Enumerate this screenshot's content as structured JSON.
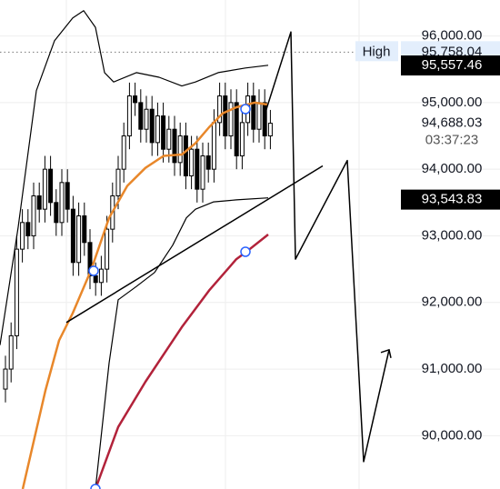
{
  "chart_data": {
    "type": "candlestick",
    "xlim": [
      0,
      110
    ],
    "ylim": [
      89200,
      96540
    ],
    "yticks": [
      {
        "value": 90000,
        "label": "90,000.00"
      },
      {
        "value": 91000,
        "label": "91,000.00"
      },
      {
        "value": 92000,
        "label": "92,000.00"
      },
      {
        "value": 93000,
        "label": "93,000.00"
      },
      {
        "value": 94000,
        "label": "94,000.00"
      },
      {
        "value": 95000,
        "label": "95,000.00"
      },
      {
        "value": 96000,
        "label": "96,000.00"
      }
    ],
    "grid": true,
    "up_color": "#ffffff",
    "down_color": "#000000",
    "candles": {
      "x": [
        1.2,
        2.44,
        3.68,
        4.92,
        6.16,
        7.4,
        8.64,
        9.88,
        11.12,
        12.36,
        13.6,
        14.84,
        16.08,
        17.32,
        18.56,
        19.8,
        21.04,
        22.28,
        23.52,
        24.76,
        26,
        27.24,
        28.48,
        29.72,
        30.96,
        32.2,
        33.44,
        34.68,
        35.92,
        37.16,
        38.4,
        39.64,
        40.88,
        42.12,
        43.36,
        44.6,
        45.84,
        47.08,
        48.32,
        49.56,
        50.8,
        52.04,
        53.28,
        54.52,
        55.76,
        57,
        58.24,
        59.48
      ],
      "open": [
        90700,
        91000,
        91500,
        92800,
        93200,
        93000,
        93600,
        93400,
        94000,
        93500,
        93200,
        93800,
        93400,
        92600,
        93300,
        92900,
        92400,
        92300,
        92500,
        93100,
        93600,
        94000,
        94500,
        95100,
        95000,
        94600,
        94900,
        94400,
        94800,
        94300,
        94600,
        94100,
        94500,
        93900,
        94300,
        93700,
        94200,
        94000,
        94700,
        95100,
        94500,
        95000,
        94200,
        94700,
        95100,
        94600,
        95000,
        94500
      ],
      "high": [
        91200,
        91700,
        93000,
        93400,
        93400,
        93800,
        93800,
        94200,
        94200,
        93700,
        94000,
        94000,
        93600,
        93500,
        93500,
        93100,
        92600,
        92700,
        93300,
        93800,
        94200,
        94700,
        95300,
        95300,
        95200,
        95100,
        95100,
        95000,
        95000,
        94800,
        94800,
        94700,
        94700,
        94500,
        94500,
        94400,
        94400,
        94900,
        95300,
        95300,
        95200,
        95200,
        94900,
        95300,
        95300,
        95200,
        95200,
        94890
      ],
      "low": [
        90500,
        90800,
        91300,
        92600,
        92800,
        92800,
        93200,
        93200,
        93300,
        93000,
        93000,
        93200,
        92400,
        92400,
        92700,
        92200,
        92100,
        92100,
        92300,
        92900,
        93400,
        93800,
        94300,
        94800,
        94400,
        94400,
        94200,
        94200,
        94100,
        94100,
        93900,
        93900,
        93700,
        93700,
        93500,
        93500,
        93800,
        93800,
        94500,
        94300,
        94300,
        94000,
        94000,
        94500,
        94400,
        94400,
        94300,
        94300
      ],
      "close": [
        91000,
        91500,
        92800,
        93200,
        93000,
        93600,
        93400,
        94000,
        93500,
        93200,
        93800,
        93400,
        92600,
        93300,
        92900,
        92400,
        92300,
        92500,
        93100,
        93600,
        94000,
        94500,
        95100,
        95000,
        94600,
        94900,
        94400,
        94800,
        94300,
        94600,
        94100,
        94500,
        93900,
        94300,
        93700,
        94200,
        94000,
        94700,
        95100,
        94500,
        95000,
        94200,
        94700,
        95100,
        94600,
        95000,
        94500,
        94690
      ]
    },
    "series": [
      {
        "color": "#e8872a",
        "width": 2.5,
        "x": [
          5,
          10,
          13,
          16,
          20,
          24,
          28,
          32,
          36,
          40,
          43,
          46,
          49,
          52,
          56,
          59
        ],
        "values": [
          89200,
          90680,
          91430,
          91840,
          92480,
          93270,
          93750,
          94020,
          94200,
          94220,
          94390,
          94630,
          94840,
          94930,
          95000,
          94970
        ]
      },
      {
        "color": "#b2223a",
        "width": 2.5,
        "x": [
          21,
          26,
          32,
          40,
          46,
          52,
          54,
          59
        ],
        "values": [
          89200,
          90130,
          90810,
          91630,
          92180,
          92650,
          92750,
          93020
        ]
      },
      {
        "color": "#000000",
        "width": 1.2,
        "x": [
          0,
          4,
          8,
          12,
          16,
          18.4,
          21,
          23,
          25,
          30,
          35,
          40,
          43,
          48,
          54,
          59
        ],
        "values": [
          91360,
          93130,
          95180,
          95930,
          96270,
          96380,
          96130,
          95450,
          95310,
          95450,
          95380,
          95250,
          95310,
          95450,
          95520,
          95560
        ]
      },
      {
        "color": "#000000",
        "width": 1.2,
        "x": [
          21,
          24,
          26,
          30,
          34,
          38,
          41,
          43,
          47,
          52,
          59
        ],
        "values": [
          89200,
          91090,
          92040,
          92240,
          92450,
          92860,
          93270,
          93400,
          93510,
          93540,
          93570
        ]
      },
      {
        "color": "#000000",
        "width": 1.5,
        "x": [
          14.6,
          71
        ],
        "values": [
          91700,
          94050
        ]
      },
      {
        "color": "#000000",
        "width": 1.5,
        "x": [
          58,
          64,
          65,
          76.4,
          80,
          85.6
        ],
        "values": [
          94770,
          96060,
          92650,
          94130,
          89610,
          91290
        ]
      }
    ],
    "high_marker": {
      "label": "High",
      "value": 95758.04,
      "value_label": "95,758.04"
    },
    "price_tags": [
      {
        "value": 95557.46,
        "value_label": "95,557.46"
      },
      {
        "value": 93543.83,
        "value_label": "93,543.83"
      }
    ],
    "last_price": {
      "value": 94688.03,
      "value_label": "94,688.03",
      "countdown": "03:37:23"
    }
  }
}
